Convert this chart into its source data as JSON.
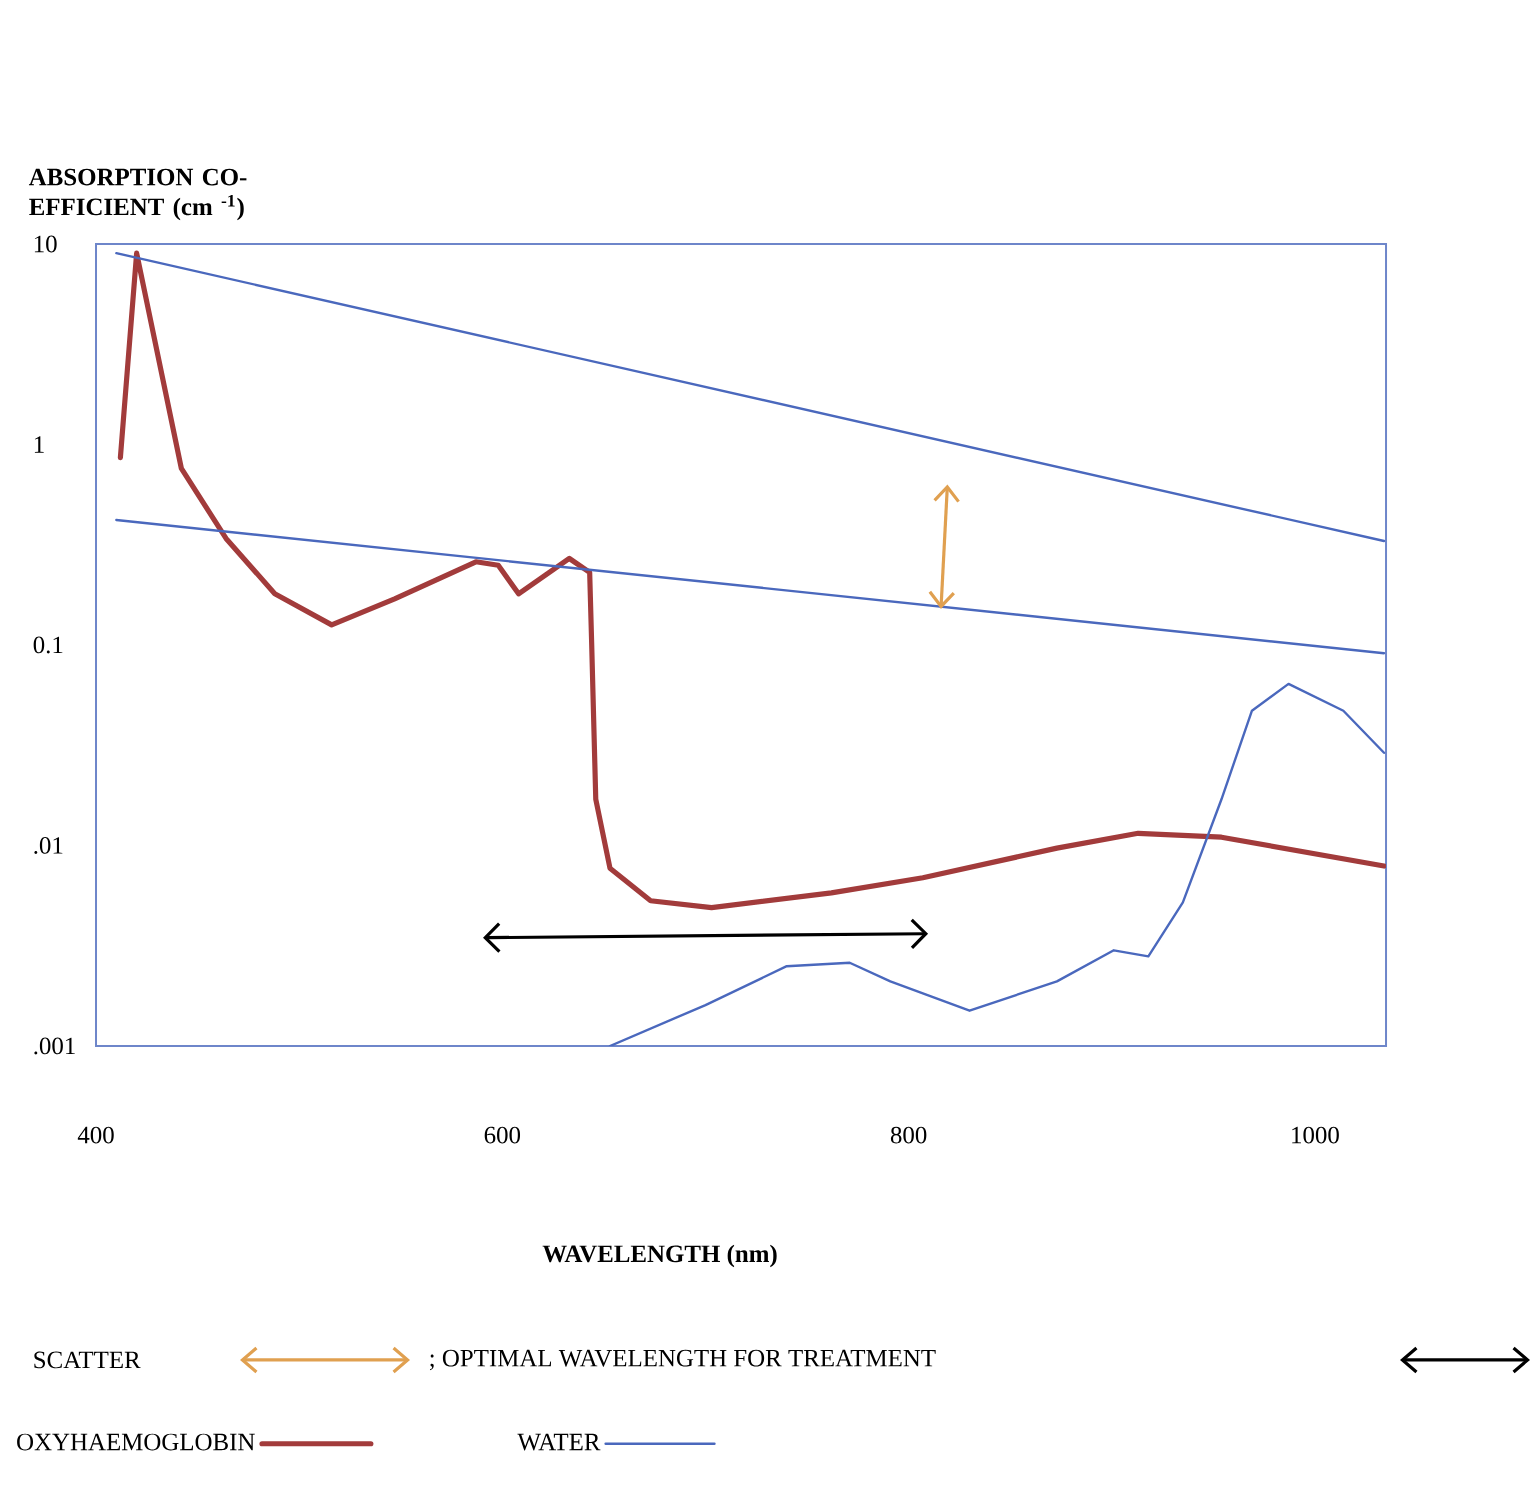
{
  "chart_data": {
    "type": "line",
    "ylabel": "ABSORPTION CO-EFFICIENT (cm $^{-1}$)",
    "xlabel": "WAVELENGTH (nm)",
    "xlim": [
      400,
      1035
    ],
    "xticks": [
      400,
      600,
      800,
      1000
    ],
    "ylim": [
      0.001,
      10
    ],
    "yticks": [
      {
        "value": 0.001,
        "label": ".001"
      },
      {
        "value": 0.01,
        "label": ".01"
      },
      0.1,
      1,
      10
    ],
    "log": true,
    "grid": false,
    "legend": "bottom",
    "line_style": "solid",
    "marker": "none",
    "annotations": [
      "SCATTER",
      "; OPTIMAL WAVELENGTH FOR TREATMENT"
    ],
    "series": [
      {
        "name": "OXYHAEMOGLOBIN",
        "color": "#a23b3b",
        "x": [
          412,
          420,
          442,
          464,
          488,
          516,
          547,
          587,
          598,
          608,
          633,
          643,
          644,
          646,
          653,
          673,
          703,
          762,
          807,
          873,
          913,
          954,
          1034
        ],
        "values": [
          0.86,
          9,
          0.76,
          0.34,
          0.18,
          0.126,
          0.17,
          0.26,
          0.25,
          0.18,
          0.27,
          0.23,
          0.1,
          0.017,
          0.0077,
          0.0053,
          0.0049,
          0.0058,
          0.0069,
          0.0097,
          0.0115,
          0.011,
          0.0079
        ]
      },
      {
        "name": "WATER",
        "color": "#4a68bd",
        "x": [
          653,
          700,
          740,
          771,
          791,
          830,
          873,
          901,
          918,
          935,
          954,
          969,
          987,
          1014,
          1034
        ],
        "values": [
          0.001,
          0.0016,
          0.0025,
          0.0026,
          0.0021,
          0.0015,
          0.0021,
          0.003,
          0.0028,
          0.0052,
          0.017,
          0.047,
          0.064,
          0.047,
          0.029
        ]
      },
      {
        "color": "#4a68bd",
        "x": [
          410,
          1034
        ],
        "values": [
          9,
          0.33
        ]
      },
      {
        "color": "#4a68bd",
        "x": [
          410,
          1034
        ],
        "values": [
          0.42,
          0.091
        ]
      }
    ]
  }
}
